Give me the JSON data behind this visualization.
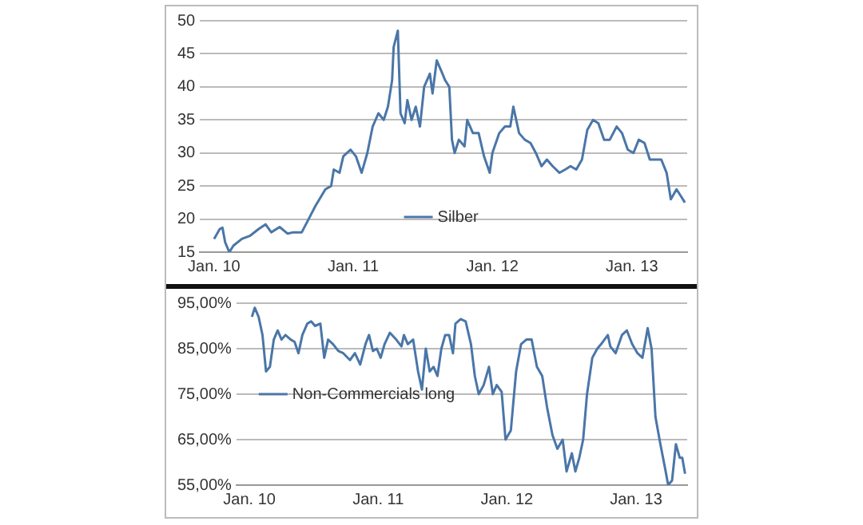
{
  "chart_data": [
    {
      "type": "line",
      "xlim": [
        "2009-11-25",
        "2013-05-26"
      ],
      "xticks": [
        {
          "value": "2010-01",
          "label": "Jan. 10"
        },
        {
          "value": "2011-01",
          "label": "Jan. 11"
        },
        {
          "value": "2012-01",
          "label": "Jan. 12"
        },
        {
          "value": "2013-01",
          "label": "Jan. 13"
        }
      ],
      "ylim": [
        15,
        50
      ],
      "yticks": [
        15,
        20,
        25,
        30,
        35,
        40,
        45,
        50
      ],
      "grid": "y",
      "legend": "bottom",
      "marker": "none",
      "line_style": "solid",
      "series": [
        {
          "name": "Silber",
          "color": "#4a76a8",
          "x": [
            "2010-01-01",
            "2010-01-16",
            "2010-01-23",
            "2010-01-30",
            "2010-02-10",
            "2010-02-21",
            "2010-03-15",
            "2010-04-06",
            "2010-04-28",
            "2010-05-16",
            "2010-05-31",
            "2010-06-22",
            "2010-07-13",
            "2010-07-28",
            "2010-08-19",
            "2010-09-06",
            "2010-09-24",
            "2010-10-20",
            "2010-11-04",
            "2010-11-11",
            "2010-11-26",
            "2010-12-06",
            "2010-12-25",
            "2011-01-08",
            "2011-01-23",
            "2011-02-07",
            "2011-02-21",
            "2011-03-08",
            "2011-03-22",
            "2011-04-02",
            "2011-04-13",
            "2011-04-17",
            "2011-04-28",
            "2011-05-05",
            "2011-05-16",
            "2011-05-23",
            "2011-06-03",
            "2011-06-14",
            "2011-06-25",
            "2011-07-06",
            "2011-07-21",
            "2011-07-28",
            "2011-08-08",
            "2011-08-23",
            "2011-08-30",
            "2011-09-10",
            "2011-09-17",
            "2011-09-24",
            "2011-10-05",
            "2011-10-20",
            "2011-10-27",
            "2011-11-11",
            "2011-11-26",
            "2011-12-10",
            "2011-12-25",
            "2012-01-01",
            "2012-01-19",
            "2012-02-03",
            "2012-02-17",
            "2012-02-25",
            "2012-03-11",
            "2012-03-26",
            "2012-04-10",
            "2012-04-24",
            "2012-05-09",
            "2012-05-23",
            "2012-06-07",
            "2012-06-25",
            "2012-07-10",
            "2012-07-24",
            "2012-08-08",
            "2012-08-23",
            "2012-09-06",
            "2012-09-21",
            "2012-10-05",
            "2012-10-20",
            "2012-11-04",
            "2012-11-22",
            "2012-12-06",
            "2012-12-21",
            "2013-01-05",
            "2013-01-19",
            "2013-02-03",
            "2013-02-17",
            "2013-03-04",
            "2013-03-19",
            "2013-04-02",
            "2013-04-13",
            "2013-04-28",
            "2013-05-09",
            "2013-05-20"
          ],
          "values": [
            17,
            18.5,
            18.7,
            16.5,
            15,
            16,
            17,
            17.5,
            18.5,
            19.2,
            18,
            18.8,
            17.8,
            18,
            18,
            20,
            22,
            24.5,
            25,
            27.5,
            27,
            29.5,
            30.5,
            29.5,
            27,
            30,
            34,
            36,
            35,
            37,
            41,
            46,
            48.5,
            36,
            34.5,
            38,
            35,
            37,
            34,
            40,
            42,
            39,
            44,
            42,
            41,
            40,
            32,
            30,
            32,
            31,
            35,
            33,
            33,
            29.5,
            27,
            30,
            33,
            34,
            34,
            37,
            33,
            32,
            31.5,
            30,
            28,
            29,
            28,
            27,
            27.5,
            28,
            27.5,
            29,
            33.5,
            35,
            34.5,
            32,
            32,
            34,
            33,
            30.5,
            30,
            32,
            31.5,
            29,
            29,
            29,
            27,
            23,
            24.5,
            23.5,
            22.5
          ]
        }
      ]
    },
    {
      "type": "line",
      "xlim": [
        "2009-11-25",
        "2013-05-26"
      ],
      "xticks": [
        {
          "value": "2010-01",
          "label": "Jan. 10"
        },
        {
          "value": "2011-01",
          "label": "Jan. 11"
        },
        {
          "value": "2012-01",
          "label": "Jan. 12"
        },
        {
          "value": "2013-01",
          "label": "Jan. 13"
        }
      ],
      "ylim": [
        55,
        95
      ],
      "yticks": [
        {
          "value": 55,
          "label": "55,00%"
        },
        {
          "value": 65,
          "label": "65,00%"
        },
        {
          "value": 75,
          "label": "75,00%"
        },
        {
          "value": 85,
          "label": "85,00%"
        },
        {
          "value": 95,
          "label": "95,00%"
        }
      ],
      "grid": "y",
      "legend": "left",
      "marker": "none",
      "line_style": "solid",
      "series": [
        {
          "name": "Non-Commercials long",
          "color": "#4a76a8",
          "x": [
            "2010-01-08",
            "2010-01-16",
            "2010-01-27",
            "2010-02-07",
            "2010-02-17",
            "2010-02-28",
            "2010-03-11",
            "2010-03-22",
            "2010-04-02",
            "2010-04-13",
            "2010-04-28",
            "2010-05-09",
            "2010-05-20",
            "2010-05-31",
            "2010-06-14",
            "2010-06-25",
            "2010-07-06",
            "2010-07-21",
            "2010-08-01",
            "2010-08-12",
            "2010-08-26",
            "2010-09-10",
            "2010-09-24",
            "2010-10-13",
            "2010-10-27",
            "2010-11-11",
            "2010-11-26",
            "2010-12-06",
            "2010-12-17",
            "2010-12-28",
            "2011-01-08",
            "2011-01-19",
            "2011-02-03",
            "2011-02-21",
            "2011-03-08",
            "2011-03-15",
            "2011-03-26",
            "2011-04-10",
            "2011-04-24",
            "2011-05-05",
            "2011-05-16",
            "2011-05-27",
            "2011-06-07",
            "2011-06-18",
            "2011-06-29",
            "2011-07-10",
            "2011-07-21",
            "2011-08-01",
            "2011-08-08",
            "2011-08-23",
            "2011-09-06",
            "2011-09-21",
            "2011-10-02",
            "2011-10-13",
            "2011-10-27",
            "2011-11-11",
            "2011-11-22",
            "2011-12-03",
            "2011-12-17",
            "2011-12-28",
            "2012-01-12",
            "2012-01-27",
            "2012-02-10",
            "2012-02-25",
            "2012-03-11",
            "2012-03-26",
            "2012-04-10",
            "2012-04-24",
            "2012-05-09",
            "2012-05-23",
            "2012-06-07",
            "2012-06-18",
            "2012-07-03",
            "2012-07-13",
            "2012-07-24",
            "2012-08-04",
            "2012-08-15",
            "2012-08-30",
            "2012-09-13",
            "2012-09-24",
            "2012-10-13",
            "2012-10-20",
            "2012-11-04",
            "2012-11-22",
            "2012-12-06",
            "2012-12-21",
            "2013-01-05",
            "2013-01-19",
            "2013-02-03",
            "2013-02-14",
            "2013-02-25",
            "2013-03-11",
            "2013-03-26",
            "2013-04-02",
            "2013-04-13",
            "2013-04-24",
            "2013-05-05",
            "2013-05-12",
            "2013-05-20"
          ],
          "values": [
            92,
            94,
            92,
            88,
            80,
            81,
            87,
            89,
            87,
            88,
            87,
            86.5,
            84,
            88,
            90.5,
            91,
            90,
            90.5,
            83,
            87,
            86,
            84.5,
            84,
            82.5,
            84,
            81.5,
            86,
            88,
            84.5,
            85,
            83,
            86,
            88.5,
            87,
            85.5,
            88,
            86,
            87,
            80,
            76,
            85,
            80,
            81,
            79,
            85,
            88,
            88,
            84,
            90.5,
            91.5,
            91,
            86,
            79,
            75,
            77,
            81,
            75,
            77,
            75.5,
            65,
            67,
            80,
            86,
            87,
            87,
            81,
            79,
            72,
            66,
            63,
            65,
            58,
            62,
            58,
            61,
            65,
            75,
            83,
            85,
            86,
            88,
            85.5,
            84,
            88,
            89,
            86,
            84,
            83,
            89.5,
            85,
            70,
            64,
            58,
            55,
            56,
            64,
            61,
            61,
            57.5
          ]
        }
      ]
    }
  ]
}
